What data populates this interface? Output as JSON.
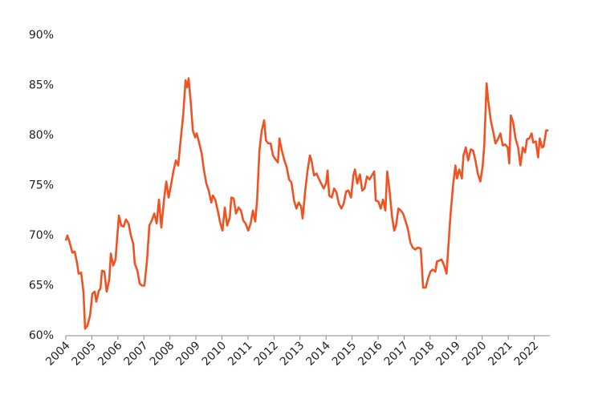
{
  "chart_data": {
    "type": "line",
    "color": "#f05323",
    "x": [
      2004,
      2004.06,
      2004.15,
      2004.25,
      2004.34,
      2004.43,
      2004.49,
      2004.59,
      2004.68,
      2004.74,
      2004.83,
      2004.93,
      2005.02,
      2005.11,
      2005.17,
      2005.27,
      2005.33,
      2005.39,
      2005.48,
      2005.57,
      2005.67,
      2005.73,
      2005.82,
      2005.91,
      2006.04,
      2006.13,
      2006.22,
      2006.31,
      2006.41,
      2006.5,
      2006.59,
      2006.65,
      2006.75,
      2006.84,
      2006.93,
      2007.02,
      2007.12,
      2007.21,
      2007.3,
      2007.4,
      2007.49,
      2007.58,
      2007.67,
      2007.77,
      2007.86,
      2007.95,
      2008.04,
      2008.14,
      2008.23,
      2008.32,
      2008.41,
      2008.51,
      2008.6,
      2008.66,
      2008.72,
      2008.81,
      2008.88,
      2008.97,
      2009.03,
      2009.12,
      2009.22,
      2009.31,
      2009.4,
      2009.49,
      2009.59,
      2009.65,
      2009.74,
      2009.83,
      2009.93,
      2010.02,
      2010.11,
      2010.2,
      2010.3,
      2010.36,
      2010.45,
      2010.54,
      2010.64,
      2010.73,
      2010.82,
      2010.91,
      2011.01,
      2011.1,
      2011.19,
      2011.28,
      2011.35,
      2011.44,
      2011.53,
      2011.62,
      2011.69,
      2011.78,
      2011.87,
      2011.96,
      2012.06,
      2012.15,
      2012.21,
      2012.3,
      2012.4,
      2012.49,
      2012.58,
      2012.67,
      2012.77,
      2012.86,
      2012.95,
      2013.04,
      2013.1,
      2013.2,
      2013.29,
      2013.38,
      2013.44,
      2013.54,
      2013.63,
      2013.72,
      2013.81,
      2013.91,
      2014,
      2014.06,
      2014.12,
      2014.22,
      2014.31,
      2014.4,
      2014.49,
      2014.59,
      2014.68,
      2014.77,
      2014.86,
      2014.96,
      2015.05,
      2015.11,
      2015.2,
      2015.3,
      2015.39,
      2015.48,
      2015.57,
      2015.67,
      2015.76,
      2015.85,
      2015.91,
      2016.01,
      2016.1,
      2016.19,
      2016.28,
      2016.35,
      2016.44,
      2016.53,
      2016.62,
      2016.69,
      2016.78,
      2016.87,
      2016.96,
      2017.06,
      2017.15,
      2017.24,
      2017.33,
      2017.43,
      2017.52,
      2017.64,
      2017.73,
      2017.83,
      2017.92,
      2018.01,
      2018.1,
      2018.2,
      2018.26,
      2018.35,
      2018.44,
      2018.54,
      2018.63,
      2018.69,
      2018.78,
      2018.88,
      2018.97,
      2019.03,
      2019.12,
      2019.22,
      2019.28,
      2019.37,
      2019.46,
      2019.56,
      2019.65,
      2019.74,
      2019.83,
      2019.93,
      2020.02,
      2020.08,
      2020.17,
      2020.23,
      2020.33,
      2020.42,
      2020.51,
      2020.6,
      2020.7,
      2020.79,
      2020.88,
      2020.98,
      2021.04,
      2021.1,
      2021.19,
      2021.28,
      2021.38,
      2021.47,
      2021.56,
      2021.65,
      2021.72,
      2021.81,
      2021.9,
      2021.96,
      2022.06,
      2022.15,
      2022.21,
      2022.3,
      2022.36,
      2022.46,
      2022.55
    ],
    "values": [
      69.5,
      70,
      69.3,
      68.3,
      68.4,
      67.3,
      66.2,
      66.3,
      64.3,
      60.7,
      61,
      62,
      64.2,
      64.4,
      63.4,
      64.5,
      64.7,
      66.5,
      66.4,
      64.4,
      65.6,
      68.2,
      67,
      67.6,
      72,
      71,
      70.9,
      71.6,
      71.2,
      70,
      69.2,
      67.2,
      66.5,
      65.2,
      65,
      65,
      67.5,
      71,
      71.5,
      72.2,
      71.2,
      73.6,
      70.8,
      73.5,
      75.4,
      73.8,
      75,
      76.5,
      77.5,
      77,
      79.5,
      82,
      85.5,
      84.8,
      85.7,
      83,
      80.5,
      79.8,
      80.2,
      79.3,
      78.2,
      76.5,
      75.2,
      74.5,
      73.3,
      74,
      73.6,
      72.6,
      71.3,
      70.5,
      72.8,
      71,
      71.8,
      73.8,
      73.7,
      72.2,
      72.8,
      72.5,
      71.5,
      71.2,
      70.5,
      71.2,
      72.5,
      71.4,
      73.5,
      78.5,
      80.5,
      81.5,
      79.5,
      79.2,
      79.2,
      78,
      77.6,
      77.3,
      79.7,
      78.5,
      77.5,
      76.8,
      75.6,
      75.3,
      73.5,
      72.7,
      73.3,
      72.9,
      71.7,
      74.5,
      76.5,
      78,
      77.5,
      76,
      76.2,
      75.7,
      75.2,
      74.7,
      75.2,
      76.5,
      74,
      73.8,
      74.7,
      74.3,
      73.2,
      72.7,
      73.2,
      74.4,
      74.5,
      73.8,
      76,
      76.6,
      75.2,
      76.1,
      74.5,
      74.7,
      75.9,
      75.6,
      76,
      76.4,
      73.5,
      73.4,
      72.7,
      73.6,
      72.5,
      76.4,
      74.5,
      72,
      70.5,
      71,
      72.7,
      72.5,
      72.2,
      71.4,
      70.6,
      69.3,
      68.8,
      68.6,
      68.8,
      68.7,
      64.8,
      64.8,
      65.7,
      66.4,
      66.6,
      66.4,
      67.4,
      67.5,
      67.6,
      67,
      66.2,
      68.5,
      72,
      75,
      77,
      75.7,
      76.6,
      75.7,
      78,
      78.8,
      77.5,
      78.6,
      78.5,
      77.5,
      76.2,
      75.4,
      77,
      79,
      85.2,
      83.5,
      81.5,
      80.4,
      79.2,
      79.6,
      80.2,
      79,
      79.1,
      78.8,
      77.2,
      82,
      81.3,
      79.7,
      78.8,
      77,
      78.8,
      78.3,
      79.6,
      79.7,
      80.2,
      79.3,
      79.4,
      77.8,
      79.7,
      78.8,
      78.9,
      80.5,
      80.5
    ],
    "xlim": [
      2004,
      2022.6
    ],
    "xticks": [
      2004,
      2005,
      2006,
      2007,
      2008,
      2009,
      2010,
      2011,
      2012,
      2013,
      2014,
      2015,
      2016,
      2017,
      2018,
      2019,
      2020,
      2021,
      2022
    ],
    "ylim": [
      60,
      90
    ],
    "yticks": [
      {
        "value": 60,
        "label": "60%"
      },
      {
        "value": 65,
        "label": "65%"
      },
      {
        "value": 70,
        "label": "70%"
      },
      {
        "value": 75,
        "label": "75%"
      },
      {
        "value": 80,
        "label": "80%"
      },
      {
        "value": 85,
        "label": "85%"
      },
      {
        "value": 90,
        "label": "90%"
      }
    ]
  }
}
